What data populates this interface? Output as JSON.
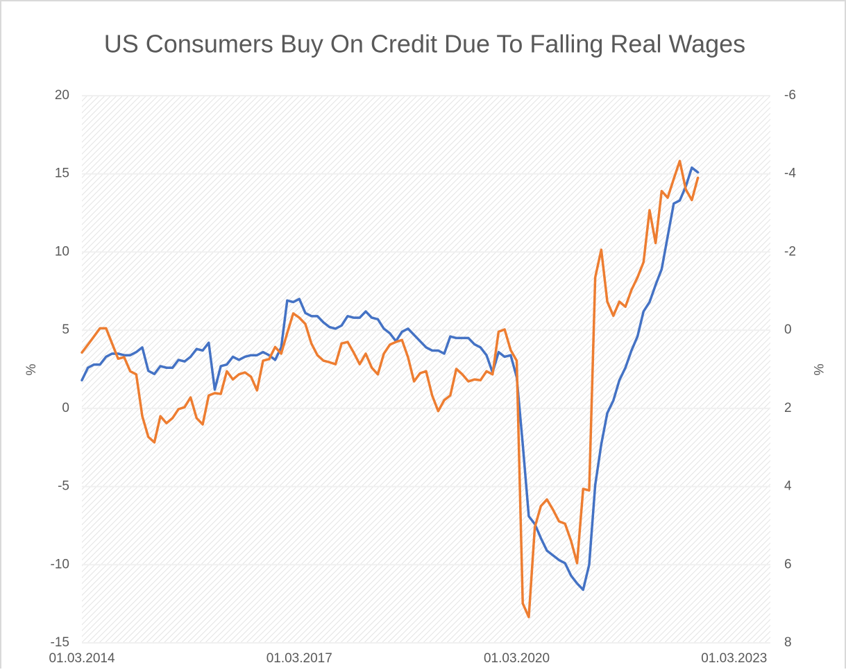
{
  "chart_data": {
    "type": "line",
    "title": "US Consumers Buy On Credit Due To Falling Real Wages",
    "ylabel": "%",
    "y2label": "%",
    "x": [
      "01.03.2014",
      "01.04.2014",
      "01.05.2014",
      "01.06.2014",
      "01.07.2014",
      "01.08.2014",
      "01.09.2014",
      "01.10.2014",
      "01.11.2014",
      "01.12.2014",
      "01.01.2015",
      "01.02.2015",
      "01.03.2015",
      "01.04.2015",
      "01.05.2015",
      "01.06.2015",
      "01.07.2015",
      "01.08.2015",
      "01.09.2015",
      "01.10.2015",
      "01.11.2015",
      "01.12.2015",
      "01.01.2016",
      "01.02.2016",
      "01.03.2016",
      "01.04.2016",
      "01.05.2016",
      "01.06.2016",
      "01.07.2016",
      "01.08.2016",
      "01.09.2016",
      "01.10.2016",
      "01.11.2016",
      "01.12.2016",
      "01.01.2017",
      "01.02.2017",
      "01.03.2017",
      "01.04.2017",
      "01.05.2017",
      "01.06.2017",
      "01.07.2017",
      "01.08.2017",
      "01.09.2017",
      "01.10.2017",
      "01.11.2017",
      "01.12.2017",
      "01.01.2018",
      "01.02.2018",
      "01.03.2018",
      "01.04.2018",
      "01.05.2018",
      "01.06.2018",
      "01.07.2018",
      "01.08.2018",
      "01.09.2018",
      "01.10.2018",
      "01.11.2018",
      "01.12.2018",
      "01.01.2019",
      "01.02.2019",
      "01.03.2019",
      "01.04.2019",
      "01.05.2019",
      "01.06.2019",
      "01.07.2019",
      "01.08.2019",
      "01.09.2019",
      "01.10.2019",
      "01.11.2019",
      "01.12.2019",
      "01.01.2020",
      "01.02.2020",
      "01.03.2020",
      "01.04.2020",
      "01.05.2020",
      "01.06.2020",
      "01.07.2020",
      "01.08.2020",
      "01.09.2020",
      "01.10.2020",
      "01.11.2020",
      "01.12.2020",
      "01.01.2021",
      "01.02.2021",
      "01.03.2021",
      "01.04.2021",
      "01.05.2021",
      "01.06.2021",
      "01.07.2021",
      "01.08.2021",
      "01.09.2021",
      "01.10.2021",
      "01.11.2021",
      "01.12.2021",
      "01.01.2022",
      "01.02.2022",
      "01.03.2022",
      "01.04.2022",
      "01.05.2022",
      "01.06.2022",
      "01.07.2022",
      "01.08.2022",
      "01.09.2022"
    ],
    "series": [
      {
        "color": "#4472c4",
        "axis": "y",
        "values": [
          1.8,
          2.6,
          2.8,
          2.8,
          3.3,
          3.5,
          3.5,
          3.4,
          3.4,
          3.6,
          3.9,
          2.4,
          2.2,
          2.7,
          2.6,
          2.6,
          3.1,
          3.0,
          3.3,
          3.8,
          3.7,
          4.2,
          1.2,
          2.7,
          2.8,
          3.3,
          3.1,
          3.3,
          3.4,
          3.4,
          3.6,
          3.4,
          3.1,
          3.9,
          6.9,
          6.8,
          7.0,
          6.1,
          5.9,
          5.9,
          5.5,
          5.2,
          5.1,
          5.3,
          5.9,
          5.8,
          5.8,
          6.2,
          5.8,
          5.7,
          5.1,
          4.8,
          4.3,
          4.9,
          5.1,
          4.7,
          4.3,
          3.9,
          3.7,
          3.7,
          3.5,
          4.6,
          4.5,
          4.5,
          4.5,
          4.1,
          3.9,
          3.4,
          2.3,
          3.6,
          3.3,
          3.4,
          2.0,
          -2.3,
          -6.9,
          -7.4,
          -8.3,
          -9.1,
          -9.4,
          -9.7,
          -9.9,
          -10.7,
          -11.2,
          -11.6,
          -10.0,
          -4.9,
          -2.3,
          -0.3,
          0.5,
          1.8,
          2.6,
          3.7,
          4.6,
          6.2,
          6.8,
          7.9,
          8.9,
          11.0,
          13.1,
          13.3,
          14.2,
          15.4,
          15.1
        ]
      },
      {
        "color": "#ed7d31",
        "axis": "y2",
        "values": [
          0.57,
          0.37,
          0.16,
          -0.05,
          -0.05,
          0.34,
          0.73,
          0.69,
          1.05,
          1.13,
          2.2,
          2.73,
          2.87,
          2.2,
          2.38,
          2.25,
          2.02,
          1.97,
          1.72,
          2.25,
          2.41,
          1.67,
          1.61,
          1.63,
          1.05,
          1.26,
          1.13,
          1.08,
          1.19,
          1.54,
          0.78,
          0.74,
          0.43,
          0.6,
          0.07,
          -0.43,
          -0.32,
          -0.16,
          0.34,
          0.64,
          0.78,
          0.82,
          0.87,
          0.34,
          0.3,
          0.57,
          0.87,
          0.6,
          0.96,
          1.13,
          0.6,
          0.37,
          0.3,
          0.25,
          0.69,
          1.31,
          1.1,
          1.05,
          1.67,
          2.07,
          1.79,
          1.67,
          0.99,
          1.13,
          1.31,
          1.26,
          1.28,
          1.05,
          1.13,
          0.04,
          -0.02,
          0.51,
          0.78,
          6.99,
          7.34,
          5.04,
          4.5,
          4.33,
          4.59,
          4.89,
          4.95,
          5.39,
          5.96,
          4.06,
          4.1,
          -1.35,
          -2.06,
          -0.73,
          -0.37,
          -0.73,
          -0.6,
          -1.03,
          -1.35,
          -1.74,
          -3.07,
          -2.23,
          -3.56,
          -3.39,
          -3.87,
          -4.33,
          -3.6,
          -3.33,
          -3.9
        ]
      }
    ],
    "xlim": [
      "01.03.2014",
      "01.09.2023"
    ],
    "xticks": [
      "01.03.2014",
      "01.03.2017",
      "01.03.2020",
      "01.03.2023"
    ],
    "ylim": [
      -15,
      20
    ],
    "yticks": [
      -15,
      -10,
      -5,
      0,
      5,
      10,
      15,
      20
    ],
    "y2lim": [
      8,
      -6
    ],
    "y2ticks": [
      -6,
      -4,
      -2,
      0,
      2,
      4,
      6,
      8
    ],
    "grid": true
  }
}
